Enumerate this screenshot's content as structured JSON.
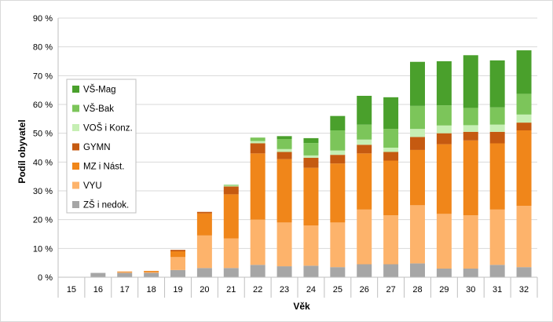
{
  "chart_data": {
    "type": "bar",
    "stacked": true,
    "title": "",
    "xlabel": "Věk",
    "ylabel": "Podíl obyvatel",
    "ylim": [
      0,
      90
    ],
    "yticks": [
      0,
      10,
      20,
      30,
      40,
      50,
      60,
      70,
      80,
      90
    ],
    "ytick_labels": [
      "0 %",
      "10 %",
      "20 %",
      "30 %",
      "40 %",
      "50 %",
      "60 %",
      "70 %",
      "80 %",
      "90 %"
    ],
    "grid": true,
    "legend_position": "left",
    "categories": [
      "15",
      "16",
      "17",
      "18",
      "19",
      "20",
      "21",
      "22",
      "23",
      "24",
      "25",
      "26",
      "27",
      "28",
      "29",
      "30",
      "31",
      "32"
    ],
    "series": [
      {
        "name": "ZŠ i nedok.",
        "color": "#a6a6a6",
        "values": [
          0,
          1.5,
          1.5,
          1.5,
          2.5,
          3.2,
          3.2,
          4.3,
          3.8,
          4.0,
          3.5,
          4.5,
          4.5,
          4.8,
          3.0,
          3.0,
          4.3,
          3.5
        ]
      },
      {
        "name": "VYU",
        "color": "#fdb36b",
        "values": [
          0,
          0,
          0.3,
          0.3,
          4.5,
          11.3,
          10.3,
          15.7,
          15.2,
          14.0,
          15.5,
          19.0,
          17.0,
          20.2,
          19.0,
          18.5,
          19.2,
          21.3
        ]
      },
      {
        "name": "MZ i Nást.",
        "color": "#f0861a",
        "values": [
          0,
          0,
          0.2,
          0.4,
          2.0,
          7.7,
          15.3,
          23.0,
          22.0,
          20.0,
          20.5,
          19.5,
          19.0,
          19.2,
          24.2,
          26.0,
          23.0,
          26.2
        ]
      },
      {
        "name": "GYMN",
        "color": "#c55a11",
        "values": [
          0,
          0,
          0,
          0,
          0.5,
          0.5,
          2.7,
          3.5,
          2.5,
          3.5,
          3.0,
          3.0,
          3.0,
          4.5,
          3.8,
          3.0,
          4.0,
          2.7
        ]
      },
      {
        "name": "VOŠ i Konz.",
        "color": "#c6efb4",
        "values": [
          0,
          0,
          0,
          0,
          0,
          0,
          0.3,
          0.8,
          1.0,
          0.8,
          1.5,
          1.8,
          1.5,
          2.8,
          2.7,
          2.3,
          2.5,
          2.8
        ]
      },
      {
        "name": "VŠ-Bak",
        "color": "#7cc55a",
        "values": [
          0,
          0,
          0,
          0,
          0,
          0,
          0.3,
          1.2,
          3.5,
          4.3,
          7.0,
          5.2,
          6.5,
          8.0,
          7.0,
          6.0,
          6.0,
          7.2
        ]
      },
      {
        "name": "VŠ-Mag",
        "color": "#4aa02c",
        "values": [
          0,
          0,
          0,
          0,
          0,
          0,
          0,
          0,
          1.0,
          1.7,
          5.0,
          10.0,
          11.0,
          15.3,
          15.3,
          18.3,
          16.3,
          15.1
        ]
      }
    ]
  }
}
